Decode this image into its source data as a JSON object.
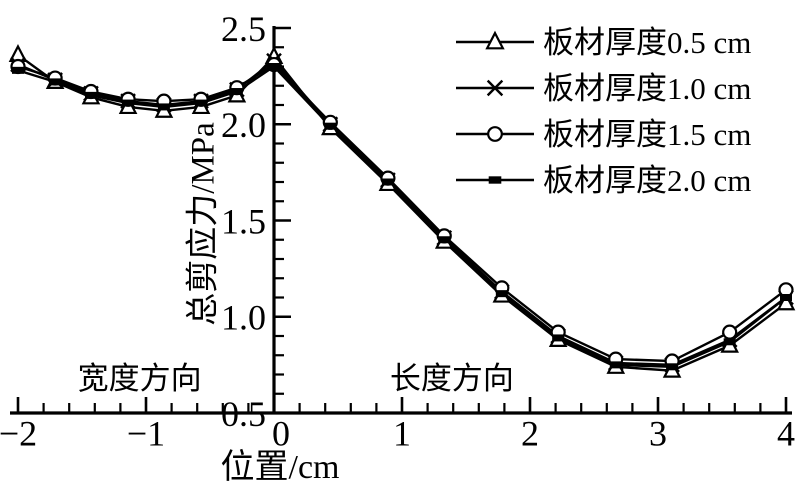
{
  "figure": {
    "background": "#ffffff",
    "ink": "#000000"
  },
  "chart_data": {
    "type": "line",
    "title": "",
    "xlabel": "位置/cm",
    "ylabel": "总剪应力/MPa",
    "xlim": [
      -2,
      4
    ],
    "ylim": [
      0.5,
      2.5
    ],
    "grid": false,
    "legend_position": "top-right",
    "x_axis": {
      "major_ticks": [
        -2,
        -1,
        0,
        1,
        2,
        3,
        4
      ],
      "major_labels": [
        "−2",
        "−1",
        "0",
        "1",
        "2",
        "3",
        "4"
      ],
      "minor_step": 0.2
    },
    "y_axis": {
      "major_ticks": [
        0.5,
        1.0,
        1.5,
        2.0,
        2.5
      ],
      "major_labels": [
        "0.5",
        "1.0",
        "1.5",
        "2.0",
        "2.5"
      ],
      "minor_step": 0.1
    },
    "annotations": [
      {
        "name": "width-direction-label",
        "text": "宽度方向",
        "x": -1.05,
        "y": 0.68
      },
      {
        "name": "length-direction-label",
        "text": "长度方向",
        "x": 1.39,
        "y": 0.68
      }
    ],
    "x": [
      -2.0,
      -1.71,
      -1.43,
      -1.14,
      -0.86,
      -0.57,
      -0.29,
      0.0,
      0.44,
      0.89,
      1.33,
      1.78,
      2.22,
      2.67,
      3.11,
      3.56,
      4.0
    ],
    "series": [
      {
        "name": "板材厚度0.5 cm",
        "marker": "triangle",
        "values": [
          2.36,
          2.22,
          2.14,
          2.09,
          2.07,
          2.09,
          2.15,
          2.35,
          1.98,
          1.69,
          1.39,
          1.11,
          0.88,
          0.74,
          0.72,
          0.85,
          1.07
        ]
      },
      {
        "name": "板材厚度1.0 cm",
        "marker": "x",
        "values": [
          2.31,
          2.23,
          2.16,
          2.12,
          2.1,
          2.12,
          2.18,
          2.33,
          2.0,
          1.71,
          1.41,
          1.13,
          0.9,
          0.76,
          0.75,
          0.88,
          1.1
        ]
      },
      {
        "name": "板材厚度1.5 cm",
        "marker": "circle",
        "values": [
          2.3,
          2.24,
          2.17,
          2.13,
          2.12,
          2.13,
          2.19,
          2.31,
          2.01,
          1.72,
          1.42,
          1.15,
          0.92,
          0.78,
          0.77,
          0.92,
          1.14
        ]
      },
      {
        "name": "板材厚度2.0 cm",
        "marker": "square",
        "values": [
          2.28,
          2.22,
          2.15,
          2.11,
          2.09,
          2.11,
          2.17,
          2.3,
          1.99,
          1.7,
          1.4,
          1.12,
          0.89,
          0.75,
          0.74,
          0.87,
          1.1
        ]
      }
    ]
  }
}
